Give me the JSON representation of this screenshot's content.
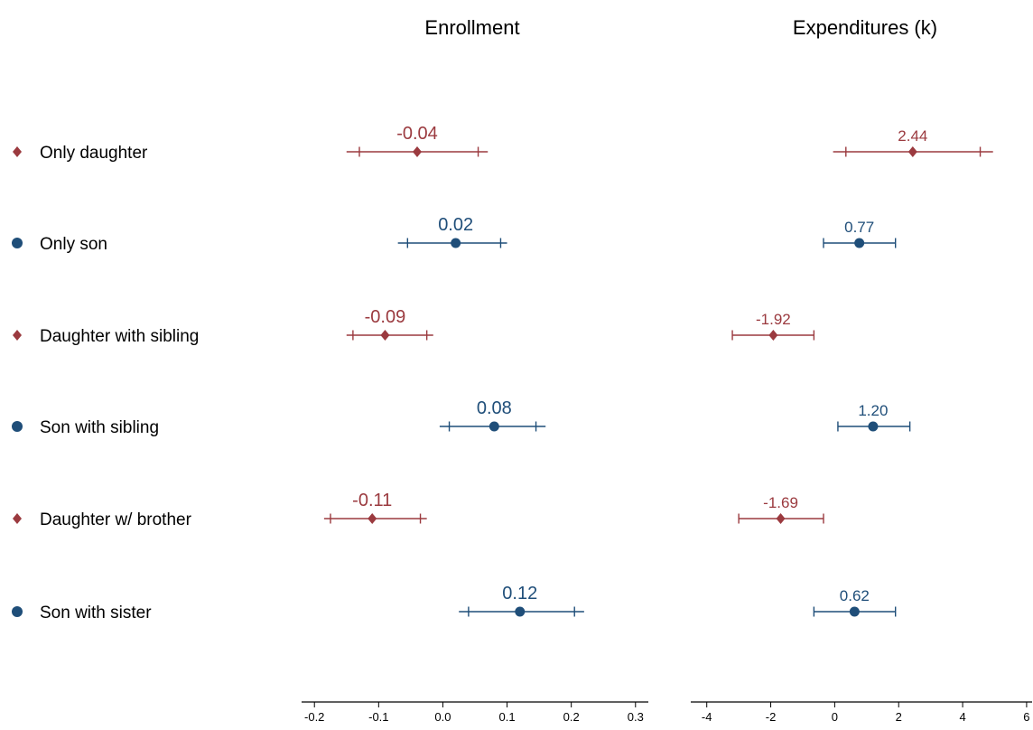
{
  "chart_data": {
    "type": "scatter",
    "subtype": "coefficient-plot-with-confidence-intervals",
    "colors": {
      "female": "#9b3a3f",
      "male": "#1f4e79"
    },
    "markers": {
      "female": "diamond",
      "male": "circle"
    },
    "rows": [
      {
        "label": "Only daughter",
        "group": "female"
      },
      {
        "label": "Only son",
        "group": "male"
      },
      {
        "label": "Daughter with sibling",
        "group": "female"
      },
      {
        "label": "Son with sibling",
        "group": "male"
      },
      {
        "label": "Daughter w/ brother",
        "group": "female"
      },
      {
        "label": "Son with sister",
        "group": "male"
      }
    ],
    "panels": [
      {
        "title": "Enrollment",
        "xlim": [
          -0.22,
          0.32
        ],
        "ticks": [
          -0.2,
          -0.1,
          0.0,
          0.1,
          0.2,
          0.3
        ],
        "tick_labels": [
          "-0.2",
          "-0.1",
          "0.0",
          "0.1",
          "0.2",
          "0.3"
        ],
        "points": [
          {
            "value": -0.04,
            "label": "-0.04",
            "ci90": [
              -0.13,
              0.055
            ],
            "ci95": [
              -0.15,
              0.07
            ]
          },
          {
            "value": 0.02,
            "label": "0.02",
            "ci90": [
              -0.055,
              0.09
            ],
            "ci95": [
              -0.07,
              0.1
            ]
          },
          {
            "value": -0.09,
            "label": "-0.09",
            "ci90": [
              -0.14,
              -0.025
            ],
            "ci95": [
              -0.15,
              -0.015
            ]
          },
          {
            "value": 0.08,
            "label": "0.08",
            "ci90": [
              0.01,
              0.145
            ],
            "ci95": [
              -0.005,
              0.16
            ]
          },
          {
            "value": -0.11,
            "label": "-0.11",
            "ci90": [
              -0.175,
              -0.035
            ],
            "ci95": [
              -0.185,
              -0.025
            ]
          },
          {
            "value": 0.12,
            "label": "0.12",
            "ci90": [
              0.04,
              0.205
            ],
            "ci95": [
              0.025,
              0.22
            ]
          }
        ]
      },
      {
        "title": "Expenditures  (k)",
        "xlim": [
          -4.5,
          6.2
        ],
        "ticks": [
          -4,
          -2,
          0,
          2,
          4,
          6
        ],
        "tick_labels": [
          "-4",
          "-2",
          "0",
          "2",
          "4",
          "6"
        ],
        "points": [
          {
            "value": 2.44,
            "label": "2.44",
            "ci90": [
              0.35,
              4.55
            ],
            "ci95": [
              -0.05,
              4.95
            ]
          },
          {
            "value": 0.77,
            "label": "0.77",
            "ci90": [
              -0.35,
              1.9
            ],
            "ci95": [
              -0.35,
              1.9
            ]
          },
          {
            "value": -1.92,
            "label": "-1.92",
            "ci90": [
              -3.2,
              -0.65
            ],
            "ci95": [
              -3.2,
              -0.65
            ]
          },
          {
            "value": 1.2,
            "label": "1.20",
            "ci90": [
              0.1,
              2.35
            ],
            "ci95": [
              0.1,
              2.35
            ]
          },
          {
            "value": -1.69,
            "label": "-1.69",
            "ci90": [
              -3.0,
              -0.35
            ],
            "ci95": [
              -3.0,
              -0.35
            ]
          },
          {
            "value": 0.62,
            "label": "0.62",
            "ci90": [
              -0.65,
              1.9
            ],
            "ci95": [
              -0.65,
              1.9
            ]
          }
        ]
      }
    ]
  }
}
